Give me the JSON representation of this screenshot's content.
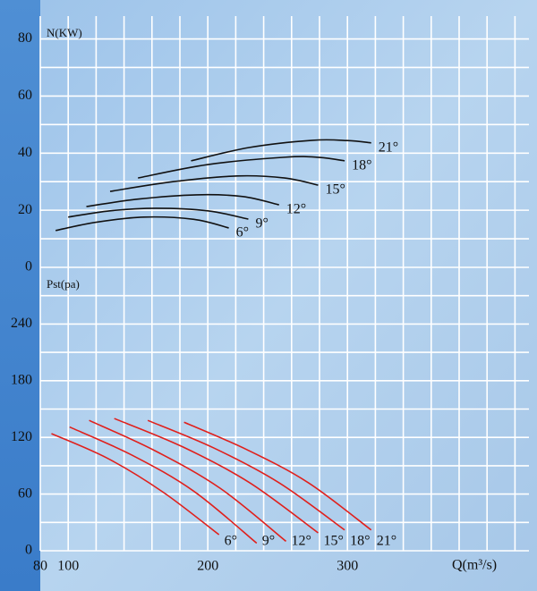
{
  "chart_data": [
    {
      "type": "line",
      "y_label": "N(KW)",
      "xlim": [
        80,
        430
      ],
      "ylim": [
        0,
        88
      ],
      "yticks": [
        0,
        20,
        40,
        60,
        80
      ],
      "xgrid": [
        80,
        100,
        120,
        140,
        160,
        180,
        200,
        220,
        240,
        260,
        280,
        300,
        320,
        340,
        360,
        380,
        400,
        420
      ],
      "ygrid": [
        0,
        10,
        20,
        30,
        40,
        50,
        60,
        70,
        80
      ],
      "grid": true,
      "line_color": "#111111",
      "series": [
        {
          "name": "6°",
          "x": [
            91,
            120,
            154,
            190,
            215
          ],
          "values": [
            12.9,
            15.8,
            17.6,
            16.8,
            13.8
          ]
        },
        {
          "name": "9°",
          "x": [
            100,
            130,
            163,
            200,
            229
          ],
          "values": [
            17.6,
            19.8,
            20.7,
            19.8,
            16.9
          ]
        },
        {
          "name": "12°",
          "x": [
            113,
            150,
            192,
            225,
            251
          ],
          "values": [
            21.3,
            23.9,
            25.4,
            24.8,
            21.9
          ]
        },
        {
          "name": "15°",
          "x": [
            130,
            175,
            221,
            255,
            279
          ],
          "values": [
            26.6,
            30.0,
            32.0,
            31.3,
            28.8
          ]
        },
        {
          "name": "18°",
          "x": [
            150,
            200,
            256,
            280,
            298
          ],
          "values": [
            31.3,
            36.0,
            38.6,
            38.5,
            37.3
          ]
        },
        {
          "name": "21°",
          "x": [
            188,
            230,
            275,
            300,
            317
          ],
          "values": [
            37.3,
            42.0,
            44.5,
            44.4,
            43.6
          ]
        }
      ]
    },
    {
      "type": "line",
      "y_label": "Pst(pa)",
      "x_label": "Q(m³/s)",
      "xlim": [
        80,
        430
      ],
      "ylim": [
        0,
        300
      ],
      "xticks": [
        80,
        100,
        200,
        300
      ],
      "yticks": [
        0,
        60,
        120,
        180,
        240
      ],
      "xgrid": [
        80,
        100,
        120,
        140,
        160,
        180,
        200,
        220,
        240,
        260,
        280,
        300,
        320,
        340,
        360,
        380,
        400,
        420
      ],
      "ygrid": [
        0,
        30,
        60,
        90,
        120,
        150,
        180,
        210,
        240,
        270
      ],
      "grid": true,
      "line_color": "#e0201c",
      "series": [
        {
          "name": "6°",
          "x": [
            88,
            128,
            168,
            208
          ],
          "values": [
            124,
            98,
            62,
            17
          ]
        },
        {
          "name": "9°",
          "x": [
            101,
            146,
            190,
            235
          ],
          "values": [
            131,
            101,
            63,
            8
          ]
        },
        {
          "name": "12°",
          "x": [
            115,
            162,
            209,
            256
          ],
          "values": [
            138,
            106,
            66,
            10
          ]
        },
        {
          "name": "15°",
          "x": [
            133,
            182,
            230,
            279
          ],
          "values": [
            140,
            110,
            72,
            19
          ]
        },
        {
          "name": "18°",
          "x": [
            157,
            204,
            251,
            298
          ],
          "values": [
            138,
            109,
            72,
            22
          ]
        },
        {
          "name": "21°",
          "x": [
            183,
            228,
            272,
            317
          ],
          "values": [
            136,
            107,
            72,
            22
          ]
        }
      ]
    }
  ]
}
